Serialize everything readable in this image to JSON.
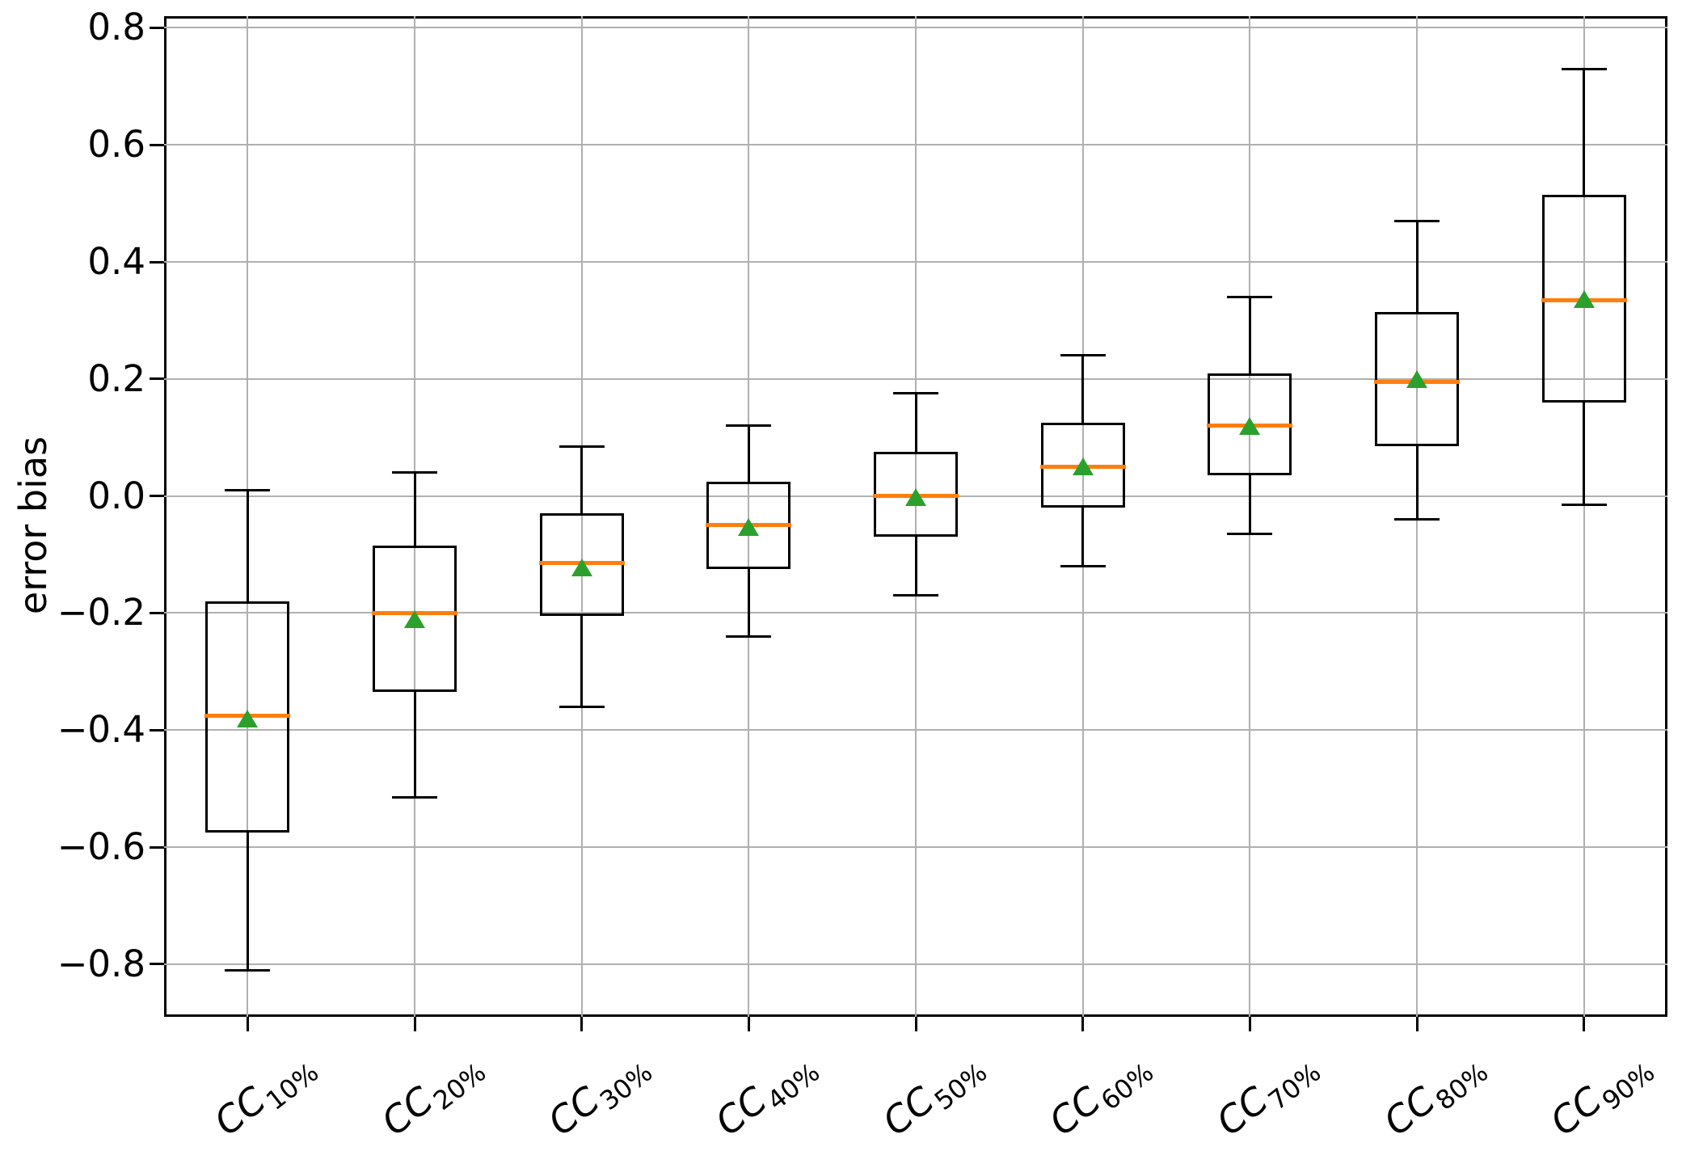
{
  "figure": {
    "ylabel": "error bias",
    "colors": {
      "box_line": "#000000",
      "median": "#ff7f0e",
      "mean_marker": "#2ca02c",
      "grid": "#b0b0b0",
      "spine": "#000000",
      "background": "#ffffff"
    }
  },
  "chart_data": {
    "type": "boxplot",
    "title": "",
    "xlabel": "",
    "ylabel": "error bias",
    "grid": true,
    "ylim": [
      -0.89,
      0.82
    ],
    "yticks": [
      0.8,
      0.6,
      0.4,
      0.2,
      0.0,
      -0.2,
      -0.4,
      -0.6,
      -0.8
    ],
    "ytick_labels": [
      "0.8",
      "0.6",
      "0.4",
      "0.2",
      "0.0",
      "−0.2",
      "−0.4",
      "−0.6",
      "−0.8"
    ],
    "categories": [
      {
        "base": "CC",
        "sub": "10%",
        "label": "CC10%"
      },
      {
        "base": "CC",
        "sub": "20%",
        "label": "CC20%"
      },
      {
        "base": "CC",
        "sub": "30%",
        "label": "CC30%"
      },
      {
        "base": "CC",
        "sub": "40%",
        "label": "CC40%"
      },
      {
        "base": "CC",
        "sub": "50%",
        "label": "CC50%"
      },
      {
        "base": "CC",
        "sub": "60%",
        "label": "CC60%"
      },
      {
        "base": "CC",
        "sub": "70%",
        "label": "CC70%"
      },
      {
        "base": "CC",
        "sub": "80%",
        "label": "CC80%"
      },
      {
        "base": "CC",
        "sub": "90%",
        "label": "CC90%"
      }
    ],
    "boxes": [
      {
        "label": "CC10%",
        "whislo": -0.81,
        "q1": -0.575,
        "med": -0.375,
        "mean": -0.38,
        "q3": -0.18,
        "whishi": 0.01
      },
      {
        "label": "CC20%",
        "whislo": -0.515,
        "q1": -0.335,
        "med": -0.2,
        "mean": -0.21,
        "q3": -0.085,
        "whishi": 0.04
      },
      {
        "label": "CC30%",
        "whislo": -0.36,
        "q1": -0.205,
        "med": -0.115,
        "mean": -0.122,
        "q3": -0.03,
        "whishi": 0.085
      },
      {
        "label": "CC40%",
        "whislo": -0.24,
        "q1": -0.125,
        "med": -0.05,
        "mean": -0.053,
        "q3": 0.025,
        "whishi": 0.12
      },
      {
        "label": "CC50%",
        "whislo": -0.17,
        "q1": -0.07,
        "med": 0.0,
        "mean": -0.002,
        "q3": 0.075,
        "whishi": 0.175
      },
      {
        "label": "CC60%",
        "whislo": -0.12,
        "q1": -0.02,
        "med": 0.05,
        "mean": 0.05,
        "q3": 0.125,
        "whishi": 0.24
      },
      {
        "label": "CC70%",
        "whislo": -0.065,
        "q1": 0.035,
        "med": 0.12,
        "mean": 0.12,
        "q3": 0.21,
        "whishi": 0.34
      },
      {
        "label": "CC80%",
        "whislo": -0.04,
        "q1": 0.085,
        "med": 0.195,
        "mean": 0.2,
        "q3": 0.315,
        "whishi": 0.47
      },
      {
        "label": "CC90%",
        "whislo": -0.015,
        "q1": 0.16,
        "med": 0.335,
        "mean": 0.337,
        "q3": 0.515,
        "whishi": 0.73
      }
    ]
  }
}
